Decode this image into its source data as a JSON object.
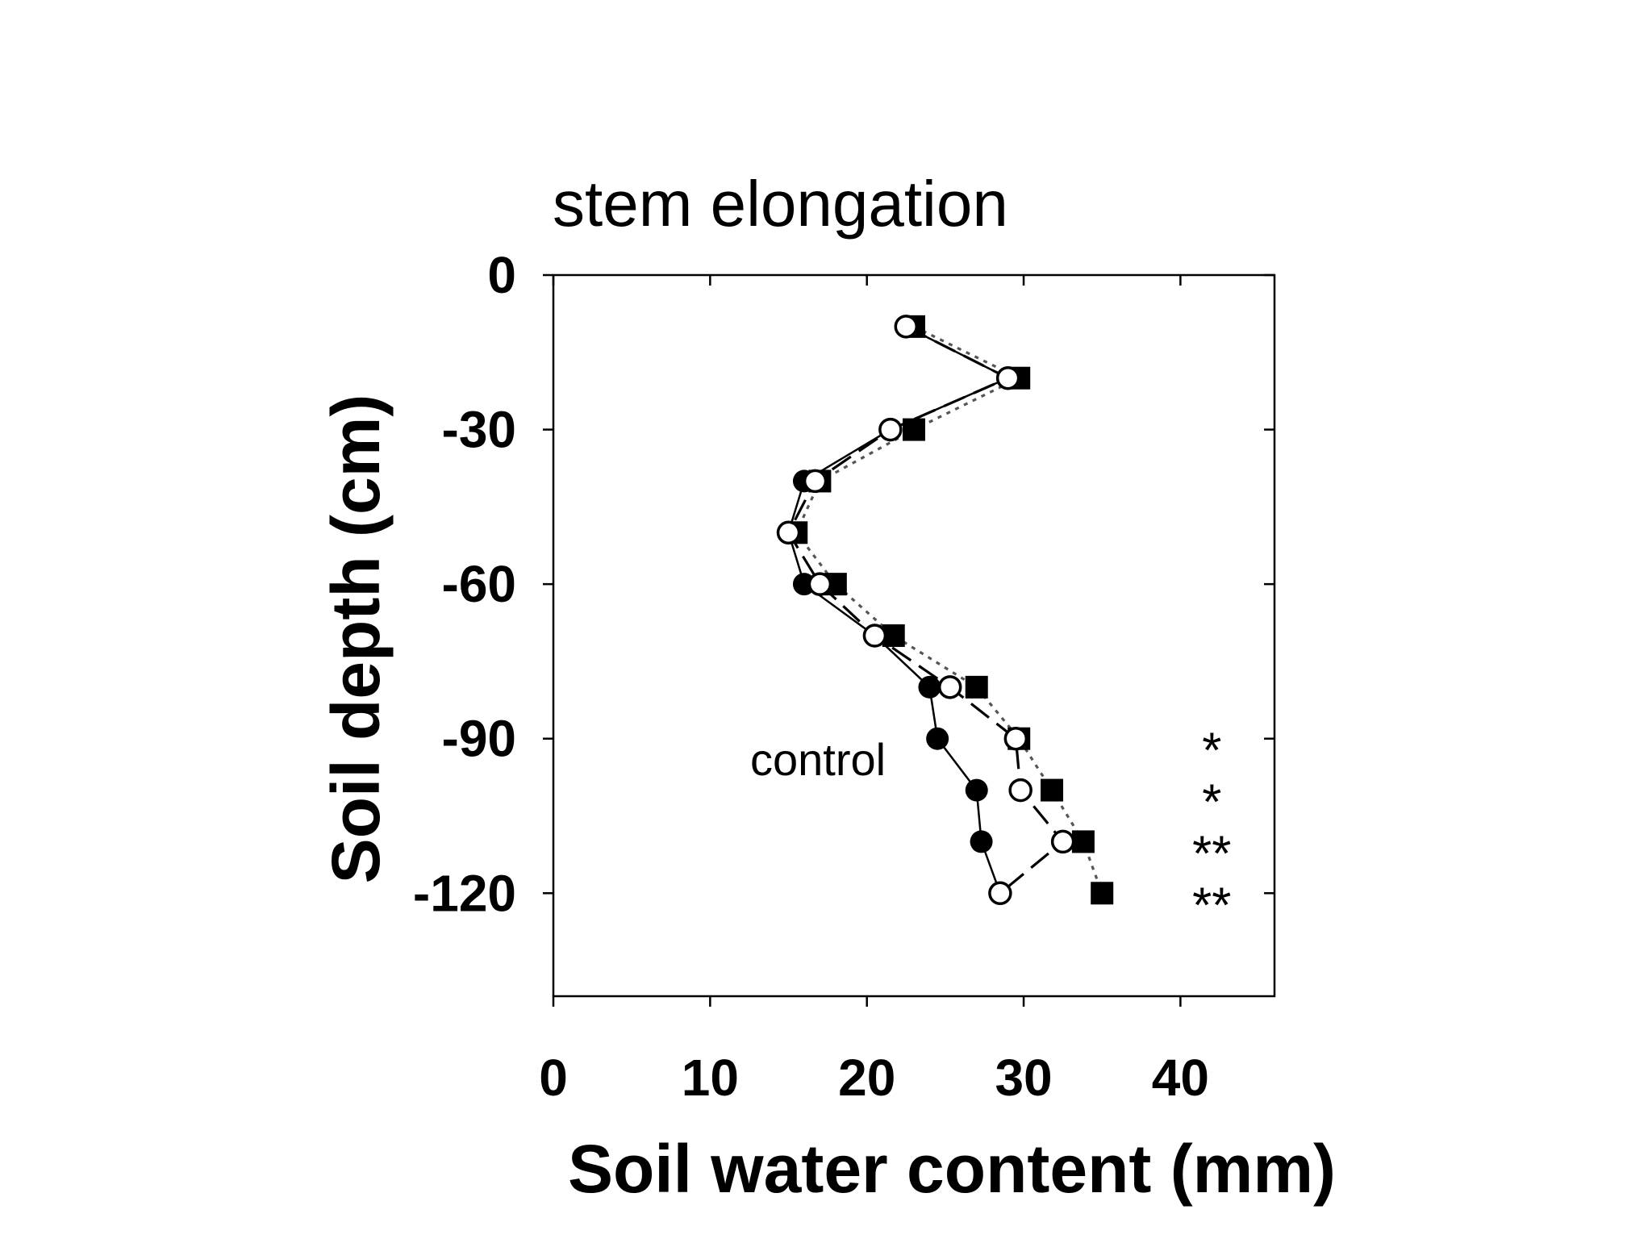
{
  "chart_data": {
    "type": "scatter",
    "title": "stem elongation",
    "xlabel": "Soil water content (mm)",
    "ylabel": "Soil depth (cm)",
    "xlim": [
      0,
      46
    ],
    "ylim": [
      -140,
      0
    ],
    "xticks": [
      0,
      10,
      20,
      30,
      40
    ],
    "yticks": [
      0,
      -30,
      -60,
      -90,
      -120
    ],
    "grid": false,
    "annotation": "control",
    "significance": [
      {
        "y": -90,
        "label": "*"
      },
      {
        "y": -100,
        "label": "*"
      },
      {
        "y": -110,
        "label": "**"
      },
      {
        "y": -120,
        "label": "**"
      }
    ],
    "series": [
      {
        "name": "control",
        "marker": "filled-circle",
        "line": "solid",
        "x": [
          22.5,
          29.0,
          21.5,
          16.0,
          15.0,
          16.0,
          20.5,
          24.0,
          24.5,
          27.0,
          27.3,
          28.5
        ],
        "y": [
          -10,
          -20,
          -30,
          -40,
          -50,
          -60,
          -70,
          -80,
          -90,
          -100,
          -110,
          -120
        ]
      },
      {
        "marker": "open-circle",
        "line": "dashed",
        "x": [
          22.5,
          29.0,
          21.5,
          16.7,
          15.0,
          17.0,
          20.5,
          25.3,
          29.5,
          29.8,
          32.5,
          28.5
        ],
        "y": [
          -10,
          -20,
          -30,
          -40,
          -50,
          -60,
          -70,
          -80,
          -90,
          -100,
          -110,
          -120
        ]
      },
      {
        "marker": "filled-square",
        "line": "dotted",
        "x": [
          23.0,
          29.7,
          23.0,
          17.0,
          15.5,
          18.0,
          21.7,
          27.0,
          29.7,
          31.8,
          33.8,
          35.0
        ],
        "y": [
          -10,
          -20,
          -30,
          -40,
          -50,
          -60,
          -70,
          -80,
          -90,
          -100,
          -110,
          -120
        ]
      }
    ]
  }
}
